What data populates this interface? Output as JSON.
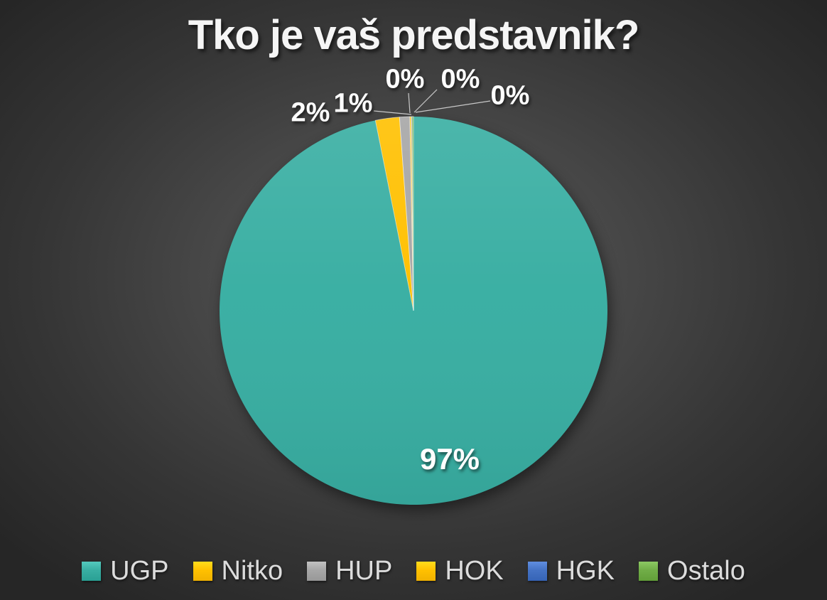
{
  "chart_data": {
    "type": "pie",
    "title": "Tko je vaš predstavnik?",
    "categories": [
      "UGP",
      "Nitko",
      "HUP",
      "HOK",
      "HGK",
      "Ostalo"
    ],
    "values": [
      97,
      2,
      1,
      0,
      0,
      0
    ],
    "unit": "%",
    "displayed_labels": [
      "97%",
      "2%",
      "1%",
      "0%",
      "0%",
      "0%"
    ],
    "colors": [
      "#38AEA2",
      "#FFC000",
      "#A6A6A6",
      "#FFC000",
      "#4472C4",
      "#70AD47"
    ],
    "render_fractions": [
      96.85,
      2.0,
      0.85,
      0.12,
      0.06,
      0.12
    ],
    "start_angle_deg": 0,
    "direction": "clockwise",
    "legend_position": "bottom",
    "background": {
      "center": "#565656",
      "edge": "#262626"
    },
    "text_color": "#ffffff",
    "legend_text_color": "#dcdcdc"
  }
}
